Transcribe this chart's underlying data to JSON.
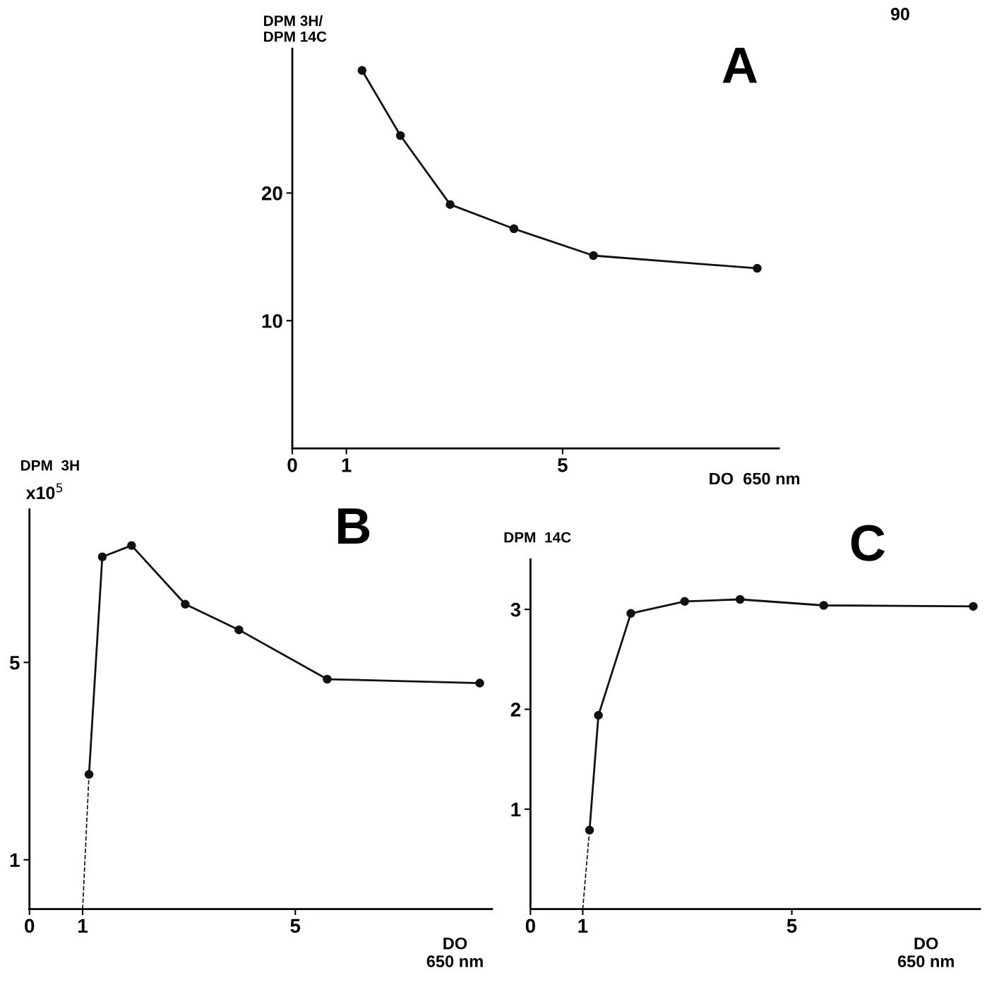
{
  "chart_data": [
    {
      "type": "line",
      "title": "A",
      "ylabel": "DPM 3H/\nDPM 14C",
      "xlabel": "DO  650 nm",
      "annotations": [
        "90"
      ],
      "marker": "circle",
      "grid": false,
      "series": [
        {
          "color": "#111111",
          "x": [
            1.29,
            2.0,
            2.92,
            4.1,
            5.57,
            8.6
          ],
          "values": [
            29.6,
            24.5,
            19.1,
            17.2,
            15.1,
            14.1
          ]
        }
      ],
      "xlim": [
        0,
        9.0
      ],
      "ylim": [
        0,
        31.3
      ],
      "xticks": [
        0,
        1,
        5
      ],
      "yticks": [
        10,
        20
      ]
    },
    {
      "type": "line",
      "title": "B",
      "ylabel": "DPM  3H",
      "xlabel": "DO\n650 nm",
      "annotations": [
        "x10$^{5}$"
      ],
      "marker": "circle",
      "grid": false,
      "series": [
        {
          "color": "#111111",
          "x": [
            1.12,
            1.37,
            1.92,
            2.93,
            3.94,
            5.6,
            8.47
          ],
          "values": [
            2.73,
            7.14,
            7.37,
            6.18,
            5.66,
            4.66,
            4.58
          ]
        },
        {
          "color": "#111111",
          "x": [
            1.0,
            1.12
          ],
          "values": [
            0,
            2.73
          ],
          "line_style": "dashed",
          "marker": "none"
        }
      ],
      "xlim": [
        0,
        8.7
      ],
      "ylim": [
        0,
        8.1
      ],
      "xticks": [
        0,
        1,
        5
      ],
      "yticks": [
        1,
        5
      ]
    },
    {
      "type": "line",
      "title": "C",
      "ylabel": "DPM  14C",
      "xlabel": "DO\n650 nm",
      "marker": "circle",
      "grid": false,
      "series": [
        {
          "color": "#111111",
          "x": [
            1.13,
            1.3,
            1.92,
            2.95,
            4.01,
            5.61,
            8.47
          ],
          "values": [
            0.79,
            1.94,
            2.96,
            3.08,
            3.1,
            3.04,
            3.03
          ]
        },
        {
          "color": "#111111",
          "x": [
            1.0,
            1.13
          ],
          "values": [
            0,
            0.79
          ],
          "line_style": "dashed",
          "marker": "none"
        }
      ],
      "xlim": [
        0,
        8.6
      ],
      "ylim": [
        0,
        3.5
      ],
      "xticks": [
        0,
        1,
        5
      ],
      "yticks": [
        1,
        2,
        3
      ]
    }
  ]
}
